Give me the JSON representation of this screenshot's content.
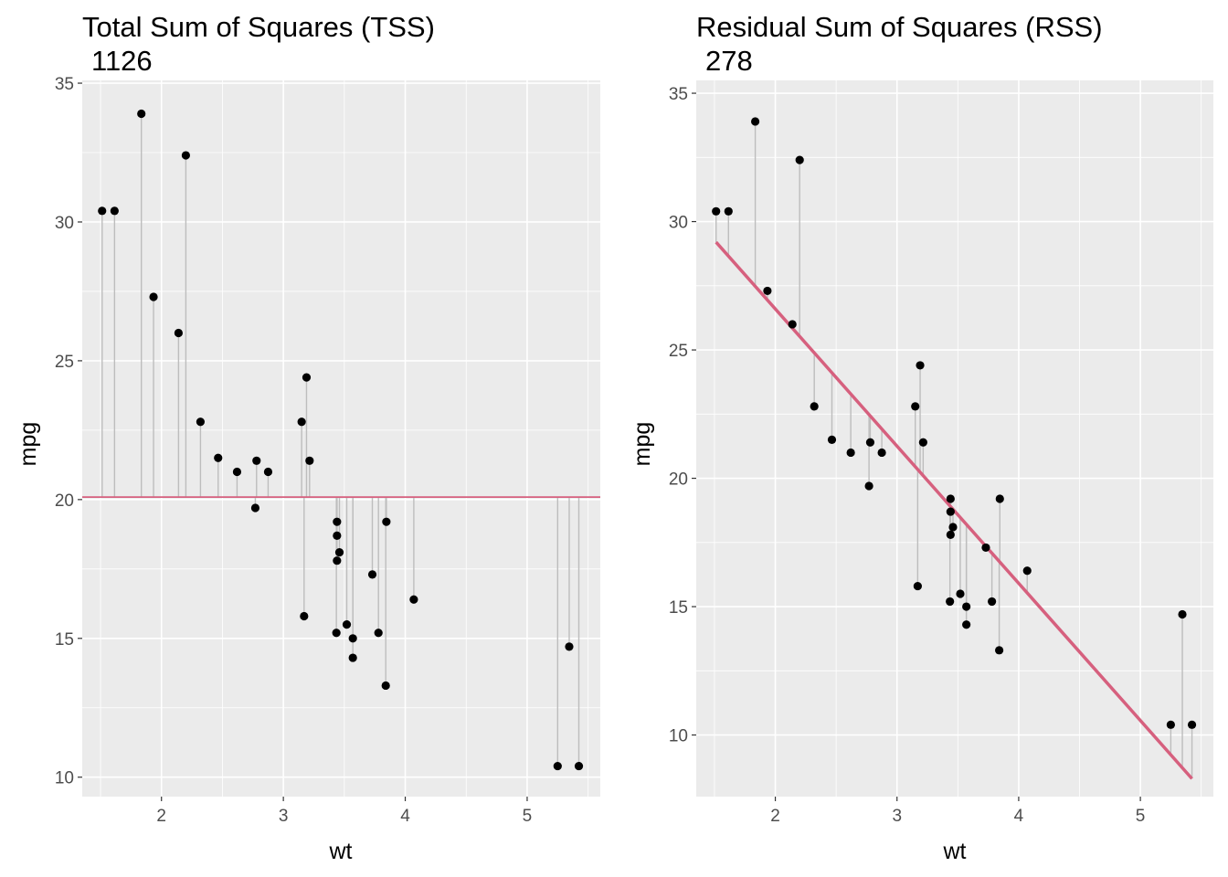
{
  "chart_data": [
    {
      "type": "scatter",
      "title": "Total Sum of Squares (TSS)",
      "subtitle": "1126",
      "xlabel": "wt",
      "ylabel": "mpg",
      "xlim": [
        1.35,
        5.6
      ],
      "ylim": [
        9.3,
        35.1
      ],
      "x_ticks": [
        2,
        3,
        4,
        5
      ],
      "x_minor_ticks": [
        1.5,
        2.5,
        3.5,
        4.5,
        5.5
      ],
      "y_ticks": [
        10,
        15,
        20,
        25,
        30,
        35
      ],
      "y_minor_ticks": [
        12.5,
        17.5,
        22.5,
        27.5,
        32.5
      ],
      "grid": true,
      "panel_background": "#ebebeb",
      "reference_line": {
        "kind": "horizontal",
        "y": 20.09,
        "color": "#d6607e"
      },
      "segments_to": "mean",
      "segment_color": "#bdbdbd",
      "point_color": "#000000",
      "series": [
        {
          "x": [
            2.62,
            2.875,
            2.32,
            3.215,
            3.44,
            3.46,
            3.57,
            3.19,
            3.15,
            3.44,
            3.44,
            4.07,
            3.73,
            3.78,
            5.25,
            5.424,
            5.345,
            2.2,
            1.615,
            1.835,
            2.465,
            3.52,
            3.435,
            3.84,
            3.845,
            1.935,
            2.14,
            1.513,
            3.17,
            2.77,
            3.57,
            2.78
          ],
          "y": [
            21.0,
            21.0,
            22.8,
            21.4,
            18.7,
            18.1,
            14.3,
            24.4,
            22.8,
            19.2,
            17.8,
            16.4,
            17.3,
            15.2,
            10.4,
            10.4,
            14.7,
            32.4,
            30.4,
            33.9,
            21.5,
            15.5,
            15.2,
            13.3,
            19.2,
            27.3,
            26.0,
            30.4,
            15.8,
            19.7,
            15.0,
            21.4
          ]
        }
      ]
    },
    {
      "type": "scatter",
      "title": "Residual Sum of Squares (RSS)",
      "subtitle": "278",
      "xlabel": "wt",
      "ylabel": "mpg",
      "xlim": [
        1.35,
        5.6
      ],
      "ylim": [
        7.6,
        35.5
      ],
      "x_ticks": [
        2,
        3,
        4,
        5
      ],
      "x_minor_ticks": [
        1.5,
        2.5,
        3.5,
        4.5,
        5.5
      ],
      "y_ticks": [
        10,
        15,
        20,
        25,
        30,
        35
      ],
      "y_minor_ticks": [
        12.5,
        17.5,
        22.5,
        27.5,
        32.5
      ],
      "grid": true,
      "panel_background": "#ebebeb",
      "reference_line": {
        "kind": "regression",
        "intercept": 37.285,
        "slope": -5.344,
        "color": "#d6607e"
      },
      "segments_to": "fitted",
      "segment_color": "#bdbdbd",
      "point_color": "#000000",
      "series": [
        {
          "x": [
            2.62,
            2.875,
            2.32,
            3.215,
            3.44,
            3.46,
            3.57,
            3.19,
            3.15,
            3.44,
            3.44,
            4.07,
            3.73,
            3.78,
            5.25,
            5.424,
            5.345,
            2.2,
            1.615,
            1.835,
            2.465,
            3.52,
            3.435,
            3.84,
            3.845,
            1.935,
            2.14,
            1.513,
            3.17,
            2.77,
            3.57,
            2.78
          ],
          "y": [
            21.0,
            21.0,
            22.8,
            21.4,
            18.7,
            18.1,
            14.3,
            24.4,
            22.8,
            19.2,
            17.8,
            16.4,
            17.3,
            15.2,
            10.4,
            10.4,
            14.7,
            32.4,
            30.4,
            33.9,
            21.5,
            15.5,
            15.2,
            13.3,
            19.2,
            27.3,
            26.0,
            30.4,
            15.8,
            19.7,
            15.0,
            21.4
          ]
        }
      ]
    }
  ]
}
